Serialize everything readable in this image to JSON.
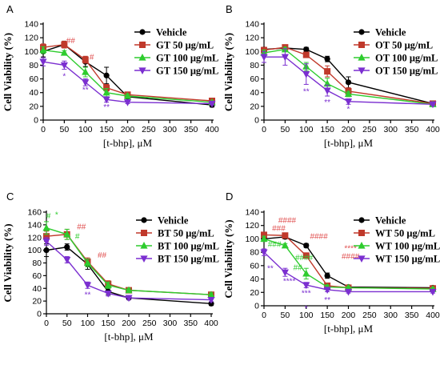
{
  "chart_data": [
    {
      "panel": "A",
      "type": "line",
      "xlabel": "[t-bhp], μM",
      "ylabel": "Cell Viability (%)",
      "xlim": [
        0,
        400
      ],
      "ylim": [
        0,
        140
      ],
      "xticks": [
        0,
        50,
        100,
        150,
        200,
        250,
        300,
        350,
        400
      ],
      "yticks": [
        0,
        20,
        40,
        60,
        80,
        100,
        120,
        140
      ],
      "series": [
        {
          "name": "Vehicle",
          "color": "#000000",
          "marker": "circle",
          "x": [
            0,
            50,
            100,
            150,
            200,
            400
          ],
          "y": [
            100,
            110,
            85,
            65,
            34,
            22
          ],
          "err": [
            8,
            5,
            7,
            12,
            3,
            3
          ]
        },
        {
          "name": "GT 50 μg/mL",
          "color": "#c0392b",
          "marker": "square",
          "x": [
            0,
            50,
            100,
            150,
            200,
            400
          ],
          "y": [
            106,
            110,
            88,
            47,
            37,
            28
          ],
          "err": [
            5,
            5,
            5,
            5,
            3,
            3
          ]
        },
        {
          "name": "GT 100 μg/mL",
          "color": "#2ecc2e",
          "marker": "triangle-up",
          "x": [
            0,
            50,
            100,
            150,
            200,
            400
          ],
          "y": [
            102,
            98,
            70,
            40,
            35,
            26
          ],
          "err": [
            5,
            3,
            7,
            6,
            3,
            2
          ]
        },
        {
          "name": "GT 150 μg/mL",
          "color": "#7b2fd0",
          "marker": "triangle-down",
          "x": [
            0,
            50,
            100,
            150,
            200,
            400
          ],
          "y": [
            85,
            80,
            55,
            30,
            26,
            24
          ],
          "err": [
            6,
            6,
            5,
            4,
            2,
            2
          ]
        }
      ],
      "annotations": [
        {
          "text": "##",
          "x": 65,
          "y": 112,
          "color": "#e05050"
        },
        {
          "text": "#",
          "x": 115,
          "y": 88,
          "color": "#e05050"
        },
        {
          "text": "*",
          "x": 50,
          "y": 60,
          "color": "#7b2fd0"
        },
        {
          "text": "**",
          "x": 100,
          "y": 40,
          "color": "#7b2fd0"
        },
        {
          "text": "**",
          "x": 150,
          "y": 15,
          "color": "#7b2fd0"
        }
      ]
    },
    {
      "panel": "B",
      "type": "line",
      "xlabel": "[t-bhp], μM",
      "ylabel": "Cell Viability (%)",
      "xlim": [
        0,
        400
      ],
      "ylim": [
        0,
        140
      ],
      "xticks": [
        0,
        50,
        100,
        150,
        200,
        250,
        300,
        350,
        400
      ],
      "yticks": [
        0,
        20,
        40,
        60,
        80,
        100,
        120,
        140
      ],
      "series": [
        {
          "name": "Vehicle",
          "color": "#000000",
          "marker": "circle",
          "x": [
            0,
            50,
            100,
            150,
            200,
            400
          ],
          "y": [
            103,
            105,
            103,
            89,
            55,
            24
          ],
          "err": [
            3,
            3,
            3,
            4,
            8,
            2
          ]
        },
        {
          "name": "OT 50 μg/mL",
          "color": "#c0392b",
          "marker": "square",
          "x": [
            0,
            50,
            100,
            150,
            200,
            400
          ],
          "y": [
            102,
            106,
            95,
            71,
            42,
            24
          ],
          "err": [
            4,
            3,
            4,
            8,
            5,
            2
          ]
        },
        {
          "name": "OT 100 μg/mL",
          "color": "#2ecc2e",
          "marker": "triangle-up",
          "x": [
            0,
            50,
            100,
            150,
            200,
            400
          ],
          "y": [
            98,
            103,
            78,
            53,
            38,
            23
          ],
          "err": [
            4,
            3,
            6,
            8,
            4,
            2
          ]
        },
        {
          "name": "OT 150 μg/mL",
          "color": "#7b2fd0",
          "marker": "triangle-down",
          "x": [
            0,
            50,
            100,
            150,
            200,
            400
          ],
          "y": [
            92,
            92,
            67,
            43,
            27,
            23
          ],
          "err": [
            8,
            12,
            15,
            8,
            4,
            2
          ]
        }
      ],
      "annotations": [
        {
          "text": "**",
          "x": 100,
          "y": 38,
          "color": "#7b2fd0"
        },
        {
          "text": "**",
          "x": 150,
          "y": 22,
          "color": "#7b2fd0"
        },
        {
          "text": "*",
          "x": 200,
          "y": 12,
          "color": "#7b2fd0"
        }
      ]
    },
    {
      "panel": "C",
      "type": "line",
      "xlabel": "[t-bhp], μM",
      "ylabel": "Cell Viability (%)",
      "xlim": [
        0,
        400
      ],
      "ylim": [
        0,
        160
      ],
      "xticks": [
        0,
        50,
        100,
        150,
        200,
        250,
        300,
        350,
        400
      ],
      "yticks": [
        0,
        20,
        40,
        60,
        80,
        100,
        120,
        140,
        160
      ],
      "series": [
        {
          "name": "Vehicle",
          "color": "#000000",
          "marker": "circle",
          "x": [
            0,
            50,
            100,
            150,
            200,
            400
          ],
          "y": [
            100,
            105,
            78,
            35,
            25,
            16
          ],
          "err": [
            10,
            5,
            8,
            5,
            3,
            3
          ]
        },
        {
          "name": "BT 50 μg/mL",
          "color": "#c0392b",
          "marker": "square",
          "x": [
            0,
            50,
            100,
            150,
            200,
            400
          ],
          "y": [
            122,
            125,
            82,
            47,
            37,
            30
          ],
          "err": [
            8,
            8,
            6,
            5,
            3,
            3
          ]
        },
        {
          "name": "BT 100 μg/mL",
          "color": "#2ecc2e",
          "marker": "triangle-up",
          "x": [
            0,
            50,
            100,
            150,
            200,
            400
          ],
          "y": [
            135,
            125,
            80,
            45,
            37,
            30
          ],
          "err": [
            10,
            8,
            6,
            5,
            3,
            3
          ]
        },
        {
          "name": "BT 150 μg/mL",
          "color": "#7b2fd0",
          "marker": "triangle-down",
          "x": [
            0,
            50,
            100,
            150,
            200,
            400
          ],
          "y": [
            114,
            85,
            45,
            32,
            25,
            22
          ],
          "err": [
            6,
            5,
            5,
            4,
            3,
            3
          ]
        }
      ],
      "annotations": [
        {
          "text": "#",
          "x": 5,
          "y": 150,
          "color": "#2ecc2e"
        },
        {
          "text": "*",
          "x": 25,
          "y": 152,
          "color": "#2ecc2e"
        },
        {
          "text": "##",
          "x": 85,
          "y": 133,
          "color": "#e05050"
        },
        {
          "text": "#",
          "x": 75,
          "y": 118,
          "color": "#2ecc2e"
        },
        {
          "text": "##",
          "x": 135,
          "y": 88,
          "color": "#e05050"
        },
        {
          "text": "**",
          "x": 100,
          "y": 26,
          "color": "#7b2fd0"
        }
      ]
    },
    {
      "panel": "D",
      "type": "line",
      "xlabel": "[t-bhp], μM",
      "ylabel": "Cell Viability (%)",
      "xlim": [
        0,
        400
      ],
      "ylim": [
        0,
        140
      ],
      "xticks": [
        0,
        50,
        100,
        150,
        200,
        250,
        300,
        350,
        400
      ],
      "yticks": [
        0,
        20,
        40,
        60,
        80,
        100,
        120,
        140
      ],
      "series": [
        {
          "name": "Vehicle",
          "color": "#000000",
          "marker": "circle",
          "x": [
            0,
            50,
            100,
            150,
            200,
            400
          ],
          "y": [
            100,
            103,
            90,
            45,
            28,
            27
          ],
          "err": [
            3,
            3,
            3,
            4,
            2,
            2
          ]
        },
        {
          "name": "WT 50 μg/mL",
          "color": "#c0392b",
          "marker": "square",
          "x": [
            0,
            50,
            100,
            150,
            200,
            400
          ],
          "y": [
            106,
            105,
            75,
            30,
            27,
            26
          ],
          "err": [
            4,
            3,
            4,
            3,
            2,
            2
          ]
        },
        {
          "name": "WT 100 μg/mL",
          "color": "#2ecc2e",
          "marker": "triangle-up",
          "x": [
            0,
            50,
            100,
            150,
            200,
            400
          ],
          "y": [
            100,
            90,
            48,
            28,
            27,
            25
          ],
          "err": [
            4,
            3,
            8,
            3,
            2,
            2
          ]
        },
        {
          "name": "WT 150 μg/mL",
          "color": "#7b2fd0",
          "marker": "triangle-down",
          "x": [
            0,
            50,
            100,
            150,
            200,
            400
          ],
          "y": [
            80,
            50,
            31,
            24,
            21,
            21
          ],
          "err": [
            5,
            6,
            4,
            3,
            2,
            2
          ]
        }
      ],
      "annotations": [
        {
          "text": "####",
          "x": 55,
          "y": 124,
          "color": "#e05050"
        },
        {
          "text": "###",
          "x": 35,
          "y": 112,
          "color": "#e05050"
        },
        {
          "text": "####",
          "x": 130,
          "y": 100,
          "color": "#e05050"
        },
        {
          "text": "****",
          "x": 205,
          "y": 82,
          "color": "#e05050"
        },
        {
          "text": "####",
          "x": 205,
          "y": 70,
          "color": "#e05050"
        },
        {
          "text": "###",
          "x": 25,
          "y": 88,
          "color": "#2ecc2e"
        },
        {
          "text": "####",
          "x": 95,
          "y": 68,
          "color": "#2ecc2e"
        },
        {
          "text": "##",
          "x": 80,
          "y": 53,
          "color": "#2ecc2e"
        },
        {
          "text": "**",
          "x": 15,
          "y": 52,
          "color": "#7b2fd0"
        },
        {
          "text": "****",
          "x": 60,
          "y": 33,
          "color": "#7b2fd0"
        },
        {
          "text": "***",
          "x": 100,
          "y": 15,
          "color": "#7b2fd0"
        },
        {
          "text": "**",
          "x": 150,
          "y": 5,
          "color": "#7b2fd0"
        },
        {
          "text": "*",
          "x": 100,
          "y": -8,
          "color": "#7b2fd0"
        }
      ]
    }
  ]
}
